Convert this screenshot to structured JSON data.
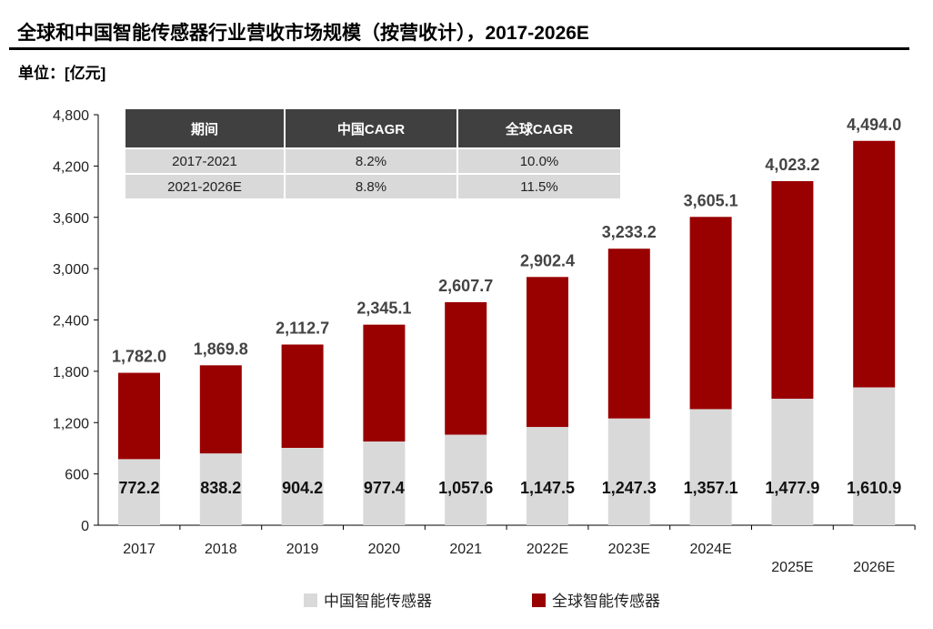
{
  "title": "全球和中国智能传感器行业营收市场规模（按营收计），2017-2026E",
  "unit": "单位：[亿元]",
  "cagr_table": {
    "headers": [
      "期间",
      "中国CAGR",
      "全球CAGR"
    ],
    "rows": [
      [
        "2017-2021",
        "8.2%",
        "10.0%"
      ],
      [
        "2021-2026E",
        "8.8%",
        "11.5%"
      ]
    ]
  },
  "chart_data": {
    "type": "bar",
    "categories": [
      "2017",
      "2018",
      "2019",
      "2020",
      "2021",
      "2022E",
      "2023E",
      "2024E",
      "2025E",
      "2026E"
    ],
    "series": [
      {
        "name": "中国智能传感器",
        "color": "#d9d9d9",
        "values": [
          772.2,
          838.2,
          904.2,
          977.4,
          1057.6,
          1147.5,
          1247.3,
          1357.1,
          1477.9,
          1610.9
        ],
        "labels": [
          "772.2",
          "838.2",
          "904.2",
          "977.4",
          "1,057.6",
          "1,147.5",
          "1,247.3",
          "1,357.1",
          "1,477.9",
          "1,610.9"
        ]
      },
      {
        "name": "全球智能传感器",
        "color": "#990000",
        "values": [
          1782.0,
          1869.8,
          2112.7,
          2345.1,
          2607.7,
          2902.4,
          3233.2,
          3605.1,
          4023.2,
          4494.0
        ],
        "labels": [
          "1,782.0",
          "1,869.8",
          "2,112.7",
          "2,345.1",
          "2,607.7",
          "2,902.4",
          "3,233.2",
          "3,605.1",
          "4,023.2",
          "4,494.0"
        ]
      }
    ],
    "ylim": [
      0,
      4800
    ],
    "yticks": [
      0,
      600,
      1200,
      1800,
      2400,
      3000,
      3600,
      4200,
      4800
    ],
    "ytick_labels": [
      "0",
      "600",
      "1,200",
      "1,800",
      "2,400",
      "3,000",
      "3,600",
      "4,200",
      "4,800"
    ],
    "grid": false,
    "legend_position": "bottom"
  }
}
